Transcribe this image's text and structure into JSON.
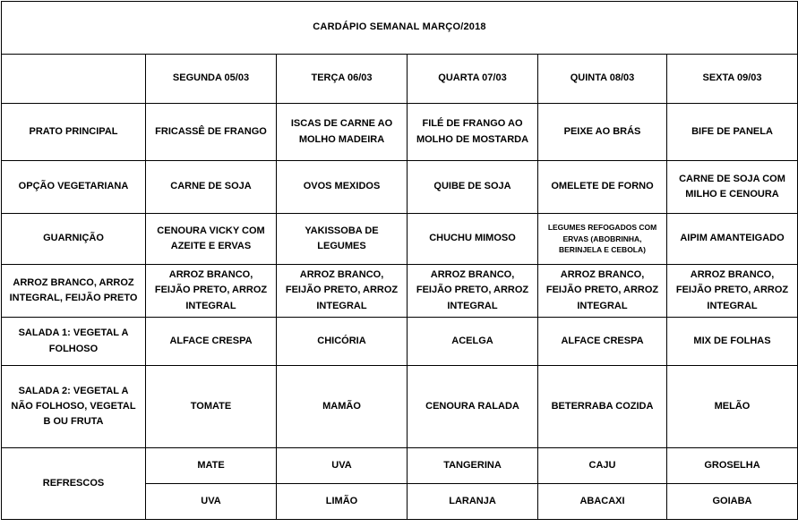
{
  "title": "CARDÁPIO SEMANAL MARÇO/2018",
  "table": {
    "day_headers": [
      "SEGUNDA   05/03",
      "TERÇA 06/03",
      "QUARTA 07/03",
      "QUINTA 08/03",
      "SEXTA 09/03"
    ],
    "rows": [
      {
        "label": "PRATO PRINCIPAL",
        "cells": [
          "FRICASSÊ DE FRANGO",
          "ISCAS DE CARNE AO MOLHO MADEIRA",
          "FILÉ DE FRANGO AO MOLHO DE MOSTARDA",
          "PEIXE AO BRÁS",
          "BIFE DE PANELA"
        ]
      },
      {
        "label": "OPÇÃO VEGETARIANA",
        "cells": [
          "CARNE DE SOJA",
          "OVOS MEXIDOS",
          "QUIBE DE SOJA",
          "OMELETE DE FORNO",
          "CARNE DE SOJA COM MILHO E  CENOURA"
        ]
      },
      {
        "label": "GUARNIÇÃO",
        "cells": [
          "CENOURA VICKY COM AZEITE E ERVAS",
          "YAKISSOBA DE LEGUMES",
          "CHUCHU MIMOSO",
          "LEGUMES REFOGADOS COM ERVAS (ABOBRINHA, BERINJELA E CEBOLA)",
          "AIPIM AMANTEIGADO"
        ]
      },
      {
        "label": "ARROZ BRANCO, ARROZ INTEGRAL, FEIJÃO PRETO",
        "cells": [
          "ARROZ BRANCO, FEIJÃO PRETO, ARROZ INTEGRAL",
          "ARROZ BRANCO, FEIJÃO PRETO, ARROZ INTEGRAL",
          "ARROZ BRANCO, FEIJÃO PRETO, ARROZ INTEGRAL",
          "ARROZ BRANCO, FEIJÃO PRETO, ARROZ INTEGRAL",
          "ARROZ BRANCO, FEIJÃO PRETO, ARROZ INTEGRAL"
        ]
      },
      {
        "label": "SALADA 1: VEGETAL A FOLHOSO",
        "cells": [
          "ALFACE CRESPA",
          "CHICÓRIA",
          "ACELGA",
          "ALFACE CRESPA",
          "MIX DE FOLHAS"
        ]
      },
      {
        "label": "SALADA 2: VEGETAL A NÃO FOLHOSO, VEGETAL B OU FRUTA",
        "cells": [
          "TOMATE",
          "MAMÃO",
          "CENOURA RALADA",
          "BETERRABA COZIDA",
          "MELÃO"
        ]
      },
      {
        "label": "REFRESCOS",
        "sub_rows": [
          [
            "MATE",
            "UVA",
            "TANGERINA",
            "CAJU",
            "GROSELHA"
          ],
          [
            "UVA",
            "LIMÃO",
            "LARANJA",
            "ABACAXI",
            "GOIABA"
          ]
        ]
      }
    ]
  }
}
